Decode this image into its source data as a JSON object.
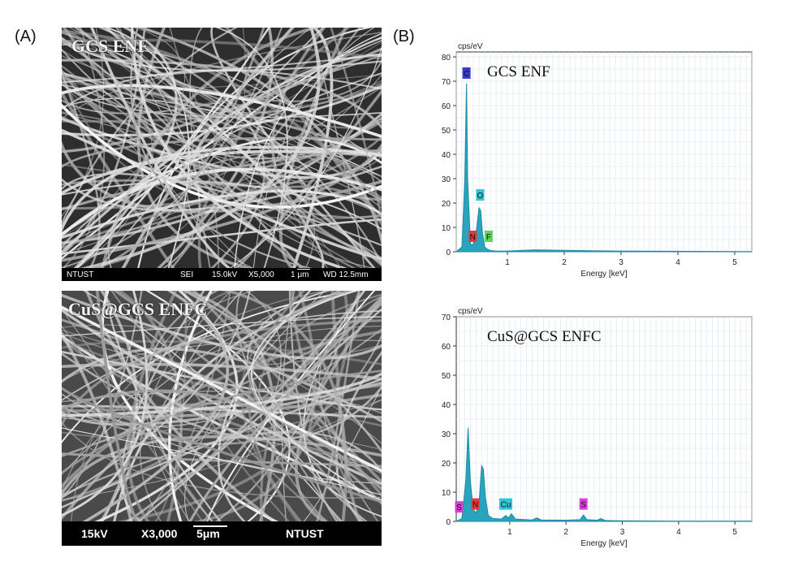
{
  "panels": {
    "a_label": "(A)",
    "b_label": "(B)"
  },
  "sem_top": {
    "title": "GCS ENF",
    "bar": [
      "NTUST",
      "SEI",
      "15.0kV",
      "X5,000",
      "1 μm",
      "WD 12.5mm"
    ]
  },
  "sem_bottom": {
    "title": "CuS@GCS ENFC",
    "bar": [
      "15kV",
      "X3,000",
      "5μm",
      "NTUST"
    ]
  },
  "chart_data": [
    {
      "type": "line",
      "title": "GCS ENF",
      "ylabel": "cps/eV",
      "xlabel": "Energy [keV]",
      "xlim": [
        0.1,
        5.3
      ],
      "ylim": [
        0,
        82
      ],
      "xticks": [
        1,
        2,
        3,
        4,
        5
      ],
      "yticks": [
        0,
        10,
        20,
        30,
        40,
        50,
        60,
        70,
        80
      ],
      "grid": true,
      "series": [
        {
          "x": [
            0.1,
            0.2,
            0.25,
            0.28,
            0.3,
            0.35,
            0.4,
            0.45,
            0.5,
            0.53,
            0.56,
            0.6,
            0.65,
            0.7,
            0.8,
            1.0,
            1.5,
            2.0,
            2.5,
            3.0,
            4.0,
            5.3
          ],
          "y": [
            0,
            2,
            30,
            69,
            30,
            3,
            3,
            8,
            18,
            17,
            8,
            2,
            1,
            0.5,
            0.3,
            0.3,
            0.8,
            0.6,
            0.4,
            0.3,
            0.2,
            0.1
          ]
        }
      ],
      "annotations": [
        {
          "text": "C",
          "x": 0.28,
          "y": 71,
          "color": "#3a3acf"
        },
        {
          "text": "O",
          "x": 0.52,
          "y": 21,
          "color": "#2fc6d8"
        },
        {
          "text": "N",
          "x": 0.39,
          "y": 4,
          "color": "#e23a3a"
        },
        {
          "text": "F",
          "x": 0.67,
          "y": 4,
          "color": "#5bd65b"
        }
      ]
    },
    {
      "type": "line",
      "title": "CuS@GCS ENFC",
      "ylabel": "cps/eV",
      "xlabel": "Energy [keV]",
      "xlim": [
        0.05,
        5.3
      ],
      "ylim": [
        0,
        70
      ],
      "xticks": [
        1,
        2,
        3,
        4,
        5
      ],
      "yticks": [
        0,
        10,
        20,
        30,
        40,
        50,
        60,
        70
      ],
      "grid": true,
      "series": [
        {
          "x": [
            0.05,
            0.15,
            0.22,
            0.26,
            0.3,
            0.35,
            0.4,
            0.45,
            0.5,
            0.53,
            0.57,
            0.62,
            0.7,
            0.85,
            0.93,
            0.98,
            1.03,
            1.1,
            1.4,
            1.48,
            1.56,
            2.0,
            2.25,
            2.31,
            2.37,
            2.55,
            2.62,
            2.7,
            3.0,
            4.0,
            5.3
          ],
          "y": [
            0,
            1,
            14,
            32,
            14,
            4,
            3,
            5,
            19,
            18,
            8,
            2,
            1,
            0.8,
            2,
            1.2,
            2.6,
            0.8,
            0.5,
            1.2,
            0.5,
            0.4,
            0.6,
            2.2,
            0.6,
            0.4,
            1.0,
            0.3,
            0.2,
            0.1,
            0.1
          ]
        }
      ],
      "annotations": [
        {
          "text": "S",
          "x": 0.1,
          "y": 3,
          "color": "#d740d7"
        },
        {
          "text": "N",
          "x": 0.39,
          "y": 4,
          "color": "#e23a3a"
        },
        {
          "text": "Cu",
          "x": 0.93,
          "y": 4,
          "color": "#2fc6d8"
        },
        {
          "text": "S",
          "x": 2.31,
          "y": 4,
          "color": "#d740d7"
        }
      ]
    }
  ],
  "colors": {
    "fill": "#2aa3bd",
    "line": "#1f8aa6",
    "grid": "#d4e5ef",
    "axis": "#333333"
  }
}
